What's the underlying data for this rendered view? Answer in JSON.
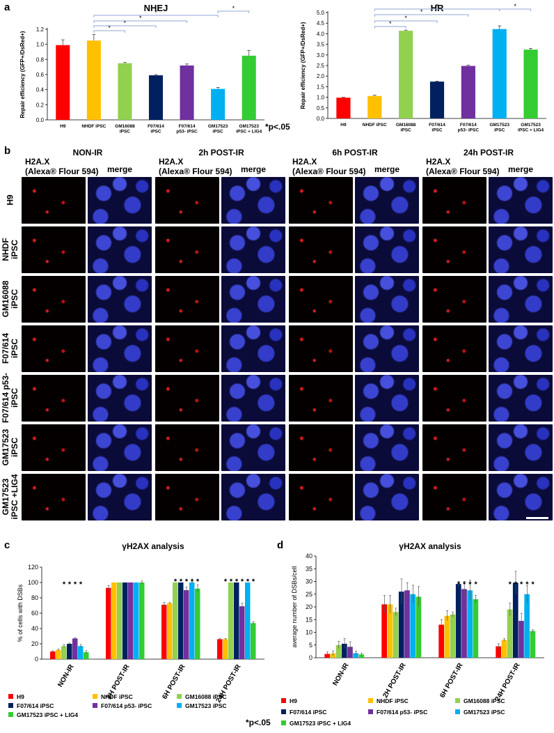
{
  "panels": {
    "a": "a",
    "b": "b",
    "c": "c",
    "d": "d"
  },
  "footnotes": {
    "a": "*p<.05",
    "c": "*p<.05"
  },
  "micro": {
    "groups": [
      {
        "title": "NON-IR",
        "stain": "H2A.X\n(Alexa® Flour 594)",
        "merge": "merge"
      },
      {
        "title": "2h POST-IR",
        "stain": "H2A.X\n(Alexa® Flour 594)",
        "merge": "merge"
      },
      {
        "title": "6h POST-IR",
        "stain": "H2A.X\n(Alexa® Flour 594)",
        "merge": "merge"
      },
      {
        "title": "24h POST-IR",
        "stain": "H2A.X\n(Alexa® Flour 594)",
        "merge": "merge"
      }
    ],
    "rows": [
      "H9",
      "NHDF\niPSC",
      "GM16088\niPSC",
      "F07/614\niPSC",
      "F07/614 p53-\niPSC",
      "GM17523\niPSC",
      "GM17523\niPSC +LIG4"
    ]
  },
  "chart_data": [
    {
      "type": "bar",
      "title": "NHEJ",
      "ylabel": "Repair efficiency (GFP+/DsRed+)",
      "ylim": [
        0,
        1.2
      ],
      "yticks": [
        "0.0",
        "0.2",
        "0.4",
        "0.6",
        "0.8",
        "1.0",
        "1.2"
      ],
      "categories": [
        "H9",
        "NHDF iPSC",
        "GM16088\niPSC",
        "F07/614\niPSC",
        "F07/614\np53- iPSC",
        "GM17523\niPSC",
        "GM17523\niPSC + LIG4"
      ],
      "values": [
        0.99,
        1.05,
        0.75,
        0.59,
        0.72,
        0.41,
        0.85
      ],
      "errors": [
        0.07,
        0.08,
        0.01,
        0.01,
        0.02,
        0.02,
        0.07
      ],
      "colors": [
        "#ff0000",
        "#ffc000",
        "#92d050",
        "#002060",
        "#7030a0",
        "#00b0f0",
        "#33cc33"
      ],
      "brackets": [
        [
          1,
          2
        ],
        [
          1,
          3
        ],
        [
          1,
          4
        ],
        [
          1,
          5
        ],
        [
          5,
          6
        ]
      ],
      "star": "*"
    },
    {
      "type": "bar",
      "title": "HR",
      "ylabel": "Repair efficiency (GFP+/DsRed+)",
      "ylim": [
        0,
        5.0
      ],
      "yticks": [
        "0.0",
        "0.5",
        "1.0",
        "1.5",
        "2.0",
        "2.5",
        "3.0",
        "3.5",
        "4.0",
        "4.5",
        "5.0"
      ],
      "categories": [
        "H9",
        "NHDF iPSC",
        "GM16088\niPSC",
        "F07/614\niPSC",
        "F07/614\np53- iPSC",
        "GM17523\niPSC",
        "GM17523\niPSC + LIG4"
      ],
      "values": [
        0.98,
        1.06,
        4.14,
        1.74,
        2.48,
        4.22,
        3.25
      ],
      "errors": [
        0.02,
        0.04,
        0.03,
        0.02,
        0.04,
        0.15,
        0.06
      ],
      "colors": [
        "#ff0000",
        "#ffc000",
        "#92d050",
        "#002060",
        "#7030a0",
        "#00b0f0",
        "#33cc33"
      ],
      "brackets": [
        [
          1,
          2
        ],
        [
          1,
          3
        ],
        [
          1,
          4
        ],
        [
          1,
          5
        ],
        [
          5,
          6
        ]
      ],
      "star": "*"
    },
    {
      "type": "bar",
      "title": "γH2AX analysis",
      "ylabel": "% of cells with DSBs",
      "ylim": [
        0,
        120
      ],
      "yticks": [
        "0",
        "20",
        "40",
        "60",
        "80",
        "100",
        "120"
      ],
      "categories": [
        "NON-IR",
        "2H POST-IR",
        "6H POST-IR",
        "24H POST-IR"
      ],
      "series": [
        {
          "name": "H9",
          "color": "#ff0000",
          "values": [
            10,
            93,
            71,
            26
          ],
          "errors": [
            1,
            3,
            3,
            1
          ]
        },
        {
          "name": "NHDF iPSC",
          "color": "#ffc000",
          "values": [
            12,
            100,
            73,
            26
          ],
          "errors": [
            1,
            0,
            1,
            1
          ]
        },
        {
          "name": "GM16088 iPSC",
          "color": "#92d050",
          "values": [
            17,
            100,
            100,
            100
          ],
          "errors": [
            2,
            0,
            0,
            0
          ]
        },
        {
          "name": "F07/614 iPSC",
          "color": "#002060",
          "values": [
            20,
            100,
            100,
            100
          ],
          "errors": [
            1,
            0,
            0,
            0
          ]
        },
        {
          "name": "F07/614 p53- iPSC",
          "color": "#7030a0",
          "values": [
            27,
            100,
            90,
            69
          ],
          "errors": [
            1,
            0,
            4,
            4
          ]
        },
        {
          "name": "GM17523 iPSC",
          "color": "#00b0f0",
          "values": [
            17,
            100,
            100,
            100
          ],
          "errors": [
            2,
            0,
            1,
            0
          ]
        },
        {
          "name": "GM17523 iPSC + LIG4",
          "color": "#33cc33",
          "values": [
            9,
            100,
            92,
            47
          ],
          "errors": [
            2,
            2,
            5,
            2
          ]
        }
      ],
      "stars": [
        [
          2,
          3,
          4,
          5
        ],
        [],
        [
          2,
          3,
          4,
          5,
          6
        ],
        [
          1,
          2,
          3,
          4,
          5,
          6
        ]
      ],
      "star": "*"
    },
    {
      "type": "bar",
      "title": "γH2AX analysis",
      "ylabel": "average number of DSBs/cell",
      "ylim": [
        0,
        40
      ],
      "yticks": [
        "0",
        "5",
        "10",
        "15",
        "20",
        "25",
        "30",
        "35",
        "40"
      ],
      "categories": [
        "NON-IR",
        "2H POST-IR",
        "6H POST-IR",
        "24H POST-IR"
      ],
      "series": [
        {
          "name": "H9",
          "color": "#ff0000",
          "values": [
            1.5,
            21,
            13,
            4.5
          ],
          "errors": [
            0.8,
            3.5,
            2,
            1
          ]
        },
        {
          "name": "NHDF iPSC",
          "color": "#ffc000",
          "values": [
            1.7,
            21,
            16.5,
            7
          ],
          "errors": [
            1,
            3.5,
            2,
            0.5
          ]
        },
        {
          "name": "GM16088 iPSC",
          "color": "#92d050",
          "values": [
            5,
            18,
            17,
            19
          ],
          "errors": [
            1.5,
            1.5,
            1,
            2.5
          ]
        },
        {
          "name": "F07/614 iPSC",
          "color": "#002060",
          "values": [
            5.5,
            26,
            29,
            29.5
          ],
          "errors": [
            2,
            5,
            1,
            4.5
          ]
        },
        {
          "name": "F07/614 p53- iPSC",
          "color": "#7030a0",
          "values": [
            4.3,
            26.5,
            27,
            14.5
          ],
          "errors": [
            2,
            3,
            3,
            3
          ]
        },
        {
          "name": "GM17523 iPSC",
          "color": "#00b0f0",
          "values": [
            1.8,
            25,
            26.5,
            25
          ],
          "errors": [
            0.8,
            3.5,
            4,
            3.5
          ]
        },
        {
          "name": "GM17523 iPSC + LIG4",
          "color": "#33cc33",
          "values": [
            1.3,
            24,
            23,
            10.5
          ],
          "errors": [
            0.5,
            4,
            1.5,
            0.5
          ]
        }
      ],
      "stars": [
        [],
        [],
        [
          3,
          4,
          5,
          6
        ],
        [
          2,
          3,
          4,
          5,
          6
        ]
      ],
      "star": "*"
    }
  ]
}
